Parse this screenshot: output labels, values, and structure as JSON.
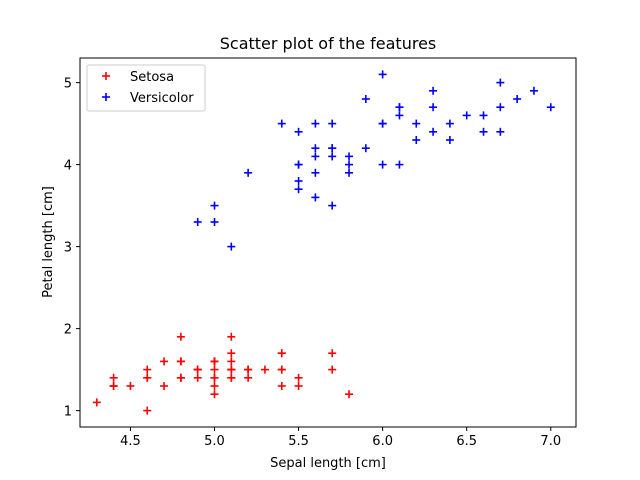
{
  "chart_data": {
    "type": "scatter",
    "title": "Scatter plot of the features",
    "xlabel": "Sepal length [cm]",
    "ylabel": "Petal length [cm]",
    "xlim": [
      4.2,
      7.15
    ],
    "ylim": [
      0.8,
      5.3
    ],
    "xticks": [
      4.5,
      5.0,
      5.5,
      6.0,
      6.5,
      7.0
    ],
    "xtick_labels": [
      "4.5",
      "5.0",
      "5.5",
      "6.0",
      "6.5",
      "7.0"
    ],
    "yticks": [
      1,
      2,
      3,
      4,
      5
    ],
    "ytick_labels": [
      "1",
      "2",
      "3",
      "4",
      "5"
    ],
    "grid": false,
    "legend_position": "top-left",
    "marker": "+",
    "series": [
      {
        "name": "Setosa",
        "color": "#ff0000",
        "points": [
          [
            5.1,
            1.4
          ],
          [
            4.9,
            1.4
          ],
          [
            4.7,
            1.3
          ],
          [
            4.6,
            1.5
          ],
          [
            5.0,
            1.4
          ],
          [
            5.4,
            1.7
          ],
          [
            4.6,
            1.4
          ],
          [
            5.0,
            1.5
          ],
          [
            4.4,
            1.4
          ],
          [
            4.9,
            1.5
          ],
          [
            5.4,
            1.5
          ],
          [
            4.8,
            1.6
          ],
          [
            4.8,
            1.4
          ],
          [
            4.3,
            1.1
          ],
          [
            5.8,
            1.2
          ],
          [
            5.7,
            1.5
          ],
          [
            5.4,
            1.3
          ],
          [
            5.1,
            1.4
          ],
          [
            5.7,
            1.7
          ],
          [
            5.1,
            1.5
          ],
          [
            5.4,
            1.7
          ],
          [
            5.1,
            1.5
          ],
          [
            4.6,
            1.0
          ],
          [
            5.1,
            1.7
          ],
          [
            4.8,
            1.9
          ],
          [
            5.0,
            1.6
          ],
          [
            5.0,
            1.6
          ],
          [
            5.2,
            1.5
          ],
          [
            5.2,
            1.4
          ],
          [
            4.7,
            1.6
          ],
          [
            4.8,
            1.6
          ],
          [
            5.4,
            1.5
          ],
          [
            5.2,
            1.5
          ],
          [
            5.5,
            1.4
          ],
          [
            4.9,
            1.5
          ],
          [
            5.0,
            1.2
          ],
          [
            5.5,
            1.3
          ],
          [
            4.9,
            1.5
          ],
          [
            4.4,
            1.3
          ],
          [
            5.1,
            1.5
          ],
          [
            5.0,
            1.3
          ],
          [
            4.5,
            1.3
          ],
          [
            4.4,
            1.3
          ],
          [
            5.0,
            1.6
          ],
          [
            5.1,
            1.9
          ],
          [
            4.8,
            1.4
          ],
          [
            5.1,
            1.6
          ],
          [
            4.6,
            1.4
          ],
          [
            5.3,
            1.5
          ],
          [
            5.0,
            1.4
          ]
        ]
      },
      {
        "name": "Versicolor",
        "color": "#0000ff",
        "points": [
          [
            7.0,
            4.7
          ],
          [
            6.4,
            4.5
          ],
          [
            6.9,
            4.9
          ],
          [
            5.5,
            4.0
          ],
          [
            6.5,
            4.6
          ],
          [
            5.7,
            4.5
          ],
          [
            6.3,
            4.7
          ],
          [
            4.9,
            3.3
          ],
          [
            6.6,
            4.6
          ],
          [
            5.2,
            3.9
          ],
          [
            5.0,
            3.5
          ],
          [
            5.9,
            4.2
          ],
          [
            6.0,
            4.0
          ],
          [
            6.1,
            4.7
          ],
          [
            5.6,
            3.6
          ],
          [
            6.7,
            4.4
          ],
          [
            5.6,
            4.5
          ],
          [
            5.8,
            4.1
          ],
          [
            6.2,
            4.5
          ],
          [
            5.6,
            3.9
          ],
          [
            5.9,
            4.8
          ],
          [
            6.1,
            4.0
          ],
          [
            6.3,
            4.9
          ],
          [
            6.1,
            4.7
          ],
          [
            6.4,
            4.3
          ],
          [
            6.6,
            4.4
          ],
          [
            6.8,
            4.8
          ],
          [
            6.7,
            5.0
          ],
          [
            6.0,
            4.5
          ],
          [
            5.7,
            3.5
          ],
          [
            5.5,
            3.8
          ],
          [
            5.5,
            3.7
          ],
          [
            5.8,
            3.9
          ],
          [
            6.0,
            5.1
          ],
          [
            5.4,
            4.5
          ],
          [
            6.0,
            4.5
          ],
          [
            6.7,
            4.7
          ],
          [
            6.3,
            4.4
          ],
          [
            5.6,
            4.1
          ],
          [
            5.5,
            4.0
          ],
          [
            5.5,
            4.4
          ],
          [
            6.1,
            4.6
          ],
          [
            5.8,
            4.0
          ],
          [
            5.0,
            3.3
          ],
          [
            5.6,
            4.2
          ],
          [
            5.7,
            4.2
          ],
          [
            5.7,
            4.2
          ],
          [
            6.2,
            4.3
          ],
          [
            5.1,
            3.0
          ],
          [
            5.7,
            4.1
          ]
        ]
      }
    ]
  }
}
